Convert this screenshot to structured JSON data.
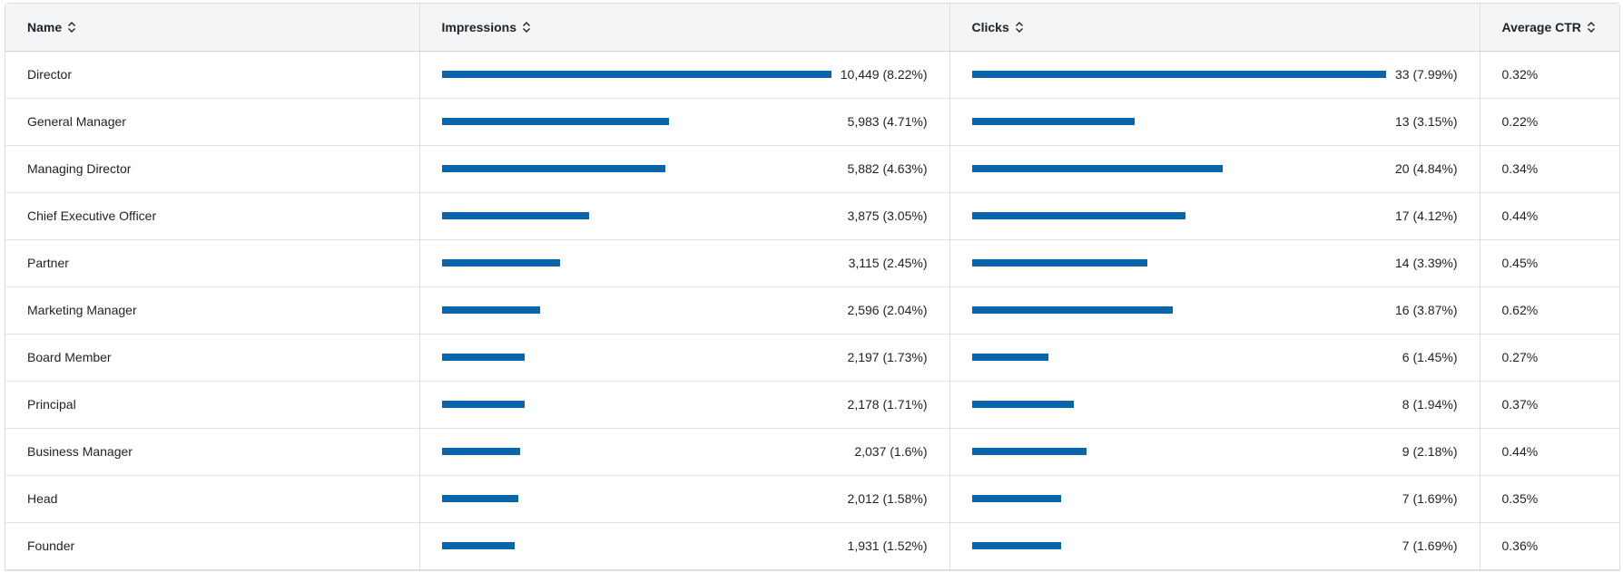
{
  "colors": {
    "bar": "#0a66a8",
    "header_bg": "#f3f5f7",
    "border": "#d9dde1"
  },
  "headers": {
    "name": "Name",
    "impressions": "Impressions",
    "clicks": "Clicks",
    "ctr": "Average CTR"
  },
  "rows": [
    {
      "name": "Director",
      "impressions": "10,449 (8.22%)",
      "impressions_share": 1.0,
      "clicks": "33 (7.99%)",
      "clicks_share": 1.0,
      "ctr": "0.32%"
    },
    {
      "name": "General Manager",
      "impressions": "5,983 (4.71%)",
      "impressions_share": 0.5726,
      "clicks": "13 (3.15%)",
      "clicks_share": 0.3939,
      "ctr": "0.22%"
    },
    {
      "name": "Managing Director",
      "impressions": "5,882 (4.63%)",
      "impressions_share": 0.5629,
      "clicks": "20 (4.84%)",
      "clicks_share": 0.6061,
      "ctr": "0.34%"
    },
    {
      "name": "Chief Executive Officer",
      "impressions": "3,875 (3.05%)",
      "impressions_share": 0.3708,
      "clicks": "17 (4.12%)",
      "clicks_share": 0.5152,
      "ctr": "0.44%"
    },
    {
      "name": "Partner",
      "impressions": "3,115 (2.45%)",
      "impressions_share": 0.2981,
      "clicks": "14 (3.39%)",
      "clicks_share": 0.4242,
      "ctr": "0.45%"
    },
    {
      "name": "Marketing Manager",
      "impressions": "2,596 (2.04%)",
      "impressions_share": 0.2484,
      "clicks": "16 (3.87%)",
      "clicks_share": 0.4848,
      "ctr": "0.62%"
    },
    {
      "name": "Board Member",
      "impressions": "2,197 (1.73%)",
      "impressions_share": 0.2103,
      "clicks": "6 (1.45%)",
      "clicks_share": 0.1818,
      "ctr": "0.27%"
    },
    {
      "name": "Principal",
      "impressions": "2,178 (1.71%)",
      "impressions_share": 0.2084,
      "clicks": "8 (1.94%)",
      "clicks_share": 0.2424,
      "ctr": "0.37%"
    },
    {
      "name": "Business Manager",
      "impressions": "2,037 (1.6%)",
      "impressions_share": 0.1949,
      "clicks": "9 (2.18%)",
      "clicks_share": 0.2727,
      "ctr": "0.44%"
    },
    {
      "name": "Head",
      "impressions": "2,012 (1.58%)",
      "impressions_share": 0.1926,
      "clicks": "7 (1.69%)",
      "clicks_share": 0.2121,
      "ctr": "0.35%"
    },
    {
      "name": "Founder",
      "impressions": "1,931 (1.52%)",
      "impressions_share": 0.1848,
      "clicks": "7 (1.69%)",
      "clicks_share": 0.2121,
      "ctr": "0.36%"
    }
  ]
}
